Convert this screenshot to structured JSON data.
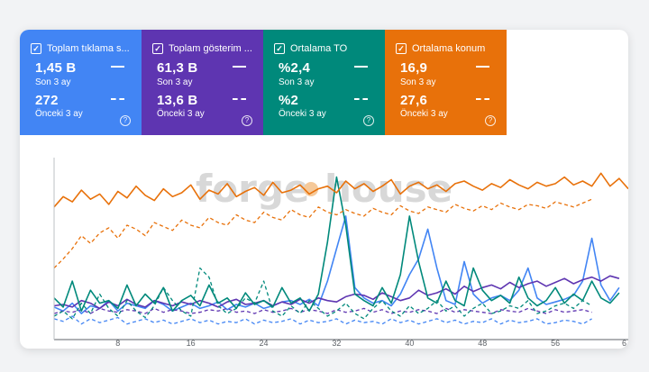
{
  "metrics": [
    {
      "label": "Toplam tıklama s...",
      "current_value": "1,45 B",
      "current_period": "Son 3 ay",
      "previous_value": "272",
      "previous_period": "Önceki 3 ay",
      "color": "#4285f4",
      "help_icon": "help-circle-icon"
    },
    {
      "label": "Toplam gösterim ...",
      "current_value": "61,3 B",
      "current_period": "Son 3 ay",
      "previous_value": "13,6 B",
      "previous_period": "Önceki 3 ay",
      "color": "#5e35b1",
      "help_icon": "help-circle-icon"
    },
    {
      "label": "Ortalama TO",
      "current_value": "%2,4",
      "current_period": "Son 3 ay",
      "previous_value": "%2",
      "previous_period": "Önceki 3 ay",
      "color": "#00897b",
      "help_icon": "help-circle-icon"
    },
    {
      "label": "Ortalama konum",
      "current_value": "16,9",
      "current_period": "Son 3 ay",
      "previous_value": "27,6",
      "previous_period": "Önceki 3 ay",
      "color": "#e8710a",
      "help_icon": "help-circle-icon"
    }
  ],
  "help_glyph": "?",
  "watermark": {
    "text_left": "forge",
    "text_right": "house",
    "accent_color": "#f5c99a"
  },
  "chart_data": {
    "type": "line",
    "x_ticks": [
      "8",
      "16",
      "24",
      "32",
      "40",
      "48",
      "56",
      "6"
    ],
    "grid": false,
    "series": [
      {
        "metric": "Toplam tıklama s...",
        "period": "Son 3 ay",
        "color": "#4285f4",
        "dashed": false,
        "values": [
          25,
          22,
          28,
          20,
          26,
          24,
          30,
          22,
          28,
          26,
          24,
          30,
          27,
          22,
          25,
          28,
          24,
          26,
          29,
          23,
          27,
          25,
          28,
          24,
          26,
          29,
          30,
          27,
          31,
          26,
          45,
          70,
          95,
          40,
          32,
          28,
          30,
          26,
          35,
          50,
          62,
          85,
          55,
          30,
          27,
          60,
          35,
          28,
          32,
          34,
          30,
          38,
          55,
          32,
          27,
          29,
          31,
          34,
          45,
          78,
          42,
          30,
          40
        ]
      },
      {
        "metric": "Toplam tıklama s...",
        "period": "Önceki 3 ay",
        "color": "#4285f4",
        "dashed": true,
        "values": [
          16,
          14,
          18,
          12,
          16,
          13,
          15,
          17,
          12,
          14,
          16,
          13,
          15,
          12,
          14,
          16,
          13,
          15,
          12,
          14,
          13,
          16,
          12,
          15,
          13,
          14,
          16,
          12,
          15,
          13,
          14,
          16,
          12,
          15,
          13,
          14,
          12,
          16,
          13,
          15,
          12,
          14,
          16,
          13,
          15,
          12,
          14,
          13,
          16,
          12,
          15,
          13,
          14,
          16,
          12,
          13,
          15,
          14,
          12,
          16
        ]
      },
      {
        "metric": "Toplam gösterim ...",
        "period": "Son 3 ay",
        "color": "#5e35b1",
        "dashed": false,
        "values": [
          26,
          27,
          25,
          30,
          28,
          24,
          29,
          26,
          31,
          27,
          25,
          30,
          28,
          26,
          29,
          27,
          30,
          28,
          25,
          29,
          31,
          27,
          28,
          30,
          26,
          29,
          27,
          31,
          28,
          32,
          30,
          29,
          33,
          35,
          34,
          31,
          36,
          33,
          30,
          32,
          38,
          34,
          36,
          39,
          35,
          41,
          37,
          40,
          42,
          39,
          44,
          40,
          43,
          45,
          41,
          44,
          47,
          43,
          46,
          48,
          45,
          49,
          47
        ]
      },
      {
        "metric": "Toplam gösterim ...",
        "period": "Önceki 3 ay",
        "color": "#5e35b1",
        "dashed": true,
        "values": [
          20,
          22,
          21,
          23,
          20,
          24,
          22,
          21,
          23,
          22,
          20,
          24,
          21,
          23,
          22,
          20,
          21,
          23,
          22,
          24,
          21,
          22,
          20,
          23,
          21,
          22,
          24,
          21,
          23,
          22,
          20,
          23,
          21,
          22,
          24,
          21,
          23,
          20,
          22,
          21,
          23,
          22,
          20,
          24,
          21,
          23,
          22,
          21,
          20,
          23,
          22,
          21,
          24,
          22,
          20,
          23,
          21,
          22,
          23,
          21
        ]
      },
      {
        "metric": "Ortalama TO",
        "period": "Son 3 ay",
        "color": "#00897b",
        "dashed": false,
        "values": [
          32,
          25,
          45,
          22,
          38,
          28,
          30,
          24,
          42,
          26,
          35,
          28,
          40,
          22,
          30,
          34,
          26,
          42,
          28,
          32,
          24,
          36,
          27,
          30,
          25,
          40,
          28,
          32,
          22,
          35,
          75,
          125,
          88,
          35,
          30,
          26,
          40,
          28,
          50,
          95,
          60,
          32,
          28,
          45,
          30,
          26,
          55,
          38,
          30,
          34,
          28,
          48,
          32,
          26,
          30,
          40,
          28,
          35,
          30,
          45,
          32,
          28,
          36
        ]
      },
      {
        "metric": "Ortalama TO",
        "period": "Önceki 3 ay",
        "color": "#00897b",
        "dashed": true,
        "values": [
          18,
          22,
          16,
          28,
          20,
          35,
          24,
          18,
          30,
          22,
          17,
          26,
          40,
          30,
          22,
          18,
          55,
          48,
          26,
          20,
          24,
          32,
          28,
          45,
          22,
          18,
          26,
          20,
          30,
          24,
          18,
          22,
          28,
          20,
          16,
          24,
          30,
          22,
          18,
          26,
          20,
          24,
          30,
          22,
          26,
          18,
          24,
          28,
          20,
          22,
          26,
          24,
          30,
          20,
          22,
          26,
          28,
          24,
          30,
          26
        ]
      },
      {
        "metric": "Ortalama konum",
        "period": "Son 3 ay",
        "color": "#e8710a",
        "dashed": false,
        "values": [
          102,
          110,
          106,
          115,
          108,
          112,
          104,
          114,
          109,
          118,
          111,
          107,
          116,
          110,
          113,
          119,
          108,
          115,
          112,
          120,
          110,
          114,
          117,
          111,
          121,
          113,
          115,
          119,
          112,
          116,
          118,
          113,
          122,
          116,
          120,
          114,
          118,
          123,
          112,
          118,
          121,
          116,
          119,
          114,
          120,
          122,
          118,
          115,
          120,
          117,
          123,
          119,
          116,
          121,
          118,
          120,
          125,
          119,
          122,
          118,
          128,
          118,
          124,
          116
        ]
      },
      {
        "metric": "Ortalama konum",
        "period": "Önceki 3 ay",
        "color": "#e8710a",
        "dashed": true,
        "values": [
          55,
          62,
          70,
          80,
          74,
          82,
          86,
          78,
          88,
          85,
          80,
          90,
          87,
          84,
          92,
          88,
          86,
          94,
          90,
          88,
          96,
          92,
          90,
          98,
          94,
          92,
          100,
          96,
          94,
          102,
          98,
          96,
          100,
          97,
          95,
          101,
          98,
          96,
          103,
          99,
          97,
          102,
          100,
          98,
          104,
          101,
          99,
          103,
          100,
          105,
          102,
          100,
          104,
          103,
          101,
          106,
          104,
          102,
          105,
          108
        ]
      }
    ]
  }
}
